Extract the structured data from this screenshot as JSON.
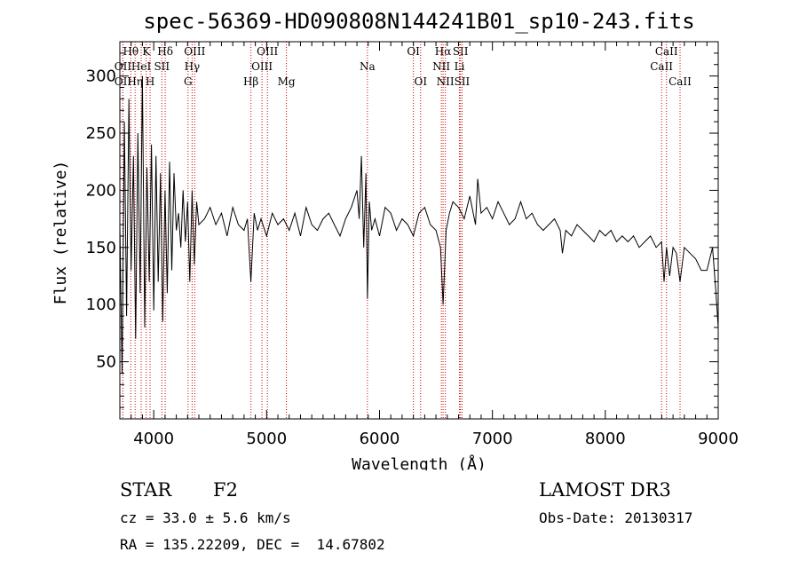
{
  "chart_data": {
    "type": "line",
    "title": "spec-56369-HD090808N144241B01_sp10-243.fits",
    "xlabel": "Wavelength (Å)",
    "ylabel": "Flux (relative)",
    "xlim": [
      3700,
      9000
    ],
    "ylim": [
      0,
      330
    ],
    "xticks": [
      4000,
      5000,
      6000,
      7000,
      8000,
      9000
    ],
    "yticks": [
      50,
      100,
      150,
      200,
      250,
      300
    ],
    "grid": false,
    "line_color": "#000000",
    "marker_color": "#cc0000",
    "series": [
      {
        "x": [
          3700,
          3720,
          3740,
          3760,
          3780,
          3800,
          3820,
          3840,
          3860,
          3880,
          3900,
          3920,
          3940,
          3960,
          3980,
          4000,
          4020,
          4040,
          4060,
          4080,
          4100,
          4120,
          4140,
          4160,
          4180,
          4200,
          4220,
          4240,
          4260,
          4280,
          4300,
          4320,
          4340,
          4360,
          4380,
          4400,
          4450,
          4500,
          4550,
          4600,
          4650,
          4700,
          4750,
          4800,
          4830,
          4861,
          4890,
          4920,
          4950,
          5000,
          5050,
          5100,
          5150,
          5200,
          5250,
          5300,
          5350,
          5400,
          5450,
          5500,
          5550,
          5600,
          5650,
          5700,
          5750,
          5800,
          5820,
          5840,
          5860,
          5880,
          5893,
          5910,
          5930,
          5960,
          6000,
          6050,
          6100,
          6150,
          6200,
          6250,
          6300,
          6350,
          6400,
          6450,
          6500,
          6540,
          6563,
          6590,
          6620,
          6650,
          6700,
          6750,
          6800,
          6850,
          6870,
          6900,
          6950,
          7000,
          7050,
          7100,
          7150,
          7200,
          7250,
          7300,
          7350,
          7400,
          7450,
          7500,
          7550,
          7600,
          7620,
          7650,
          7700,
          7750,
          7800,
          7850,
          7900,
          7950,
          8000,
          8050,
          8100,
          8150,
          8200,
          8250,
          8300,
          8350,
          8400,
          8450,
          8498,
          8520,
          8542,
          8570,
          8600,
          8630,
          8662,
          8700,
          8750,
          8800,
          8850,
          8900,
          8950,
          8980,
          9000
        ],
        "y": [
          170,
          40,
          260,
          90,
          280,
          130,
          230,
          70,
          250,
          110,
          300,
          80,
          220,
          120,
          240,
          95,
          230,
          120,
          215,
          85,
          200,
          110,
          225,
          130,
          215,
          165,
          180,
          150,
          200,
          155,
          190,
          120,
          200,
          135,
          190,
          170,
          175,
          185,
          170,
          180,
          160,
          185,
          170,
          165,
          175,
          120,
          180,
          165,
          175,
          160,
          180,
          170,
          175,
          165,
          180,
          160,
          185,
          170,
          165,
          175,
          180,
          170,
          160,
          175,
          185,
          200,
          175,
          230,
          150,
          215,
          105,
          190,
          165,
          175,
          160,
          185,
          180,
          165,
          175,
          170,
          160,
          180,
          185,
          170,
          165,
          150,
          100,
          165,
          180,
          190,
          185,
          175,
          195,
          170,
          210,
          180,
          185,
          175,
          190,
          180,
          170,
          175,
          190,
          175,
          180,
          170,
          165,
          170,
          175,
          165,
          145,
          165,
          160,
          170,
          165,
          160,
          155,
          165,
          160,
          165,
          155,
          160,
          155,
          160,
          150,
          155,
          160,
          150,
          155,
          120,
          150,
          125,
          150,
          145,
          120,
          150,
          145,
          140,
          130,
          130,
          150,
          110,
          80
        ]
      }
    ],
    "spectral_lines": [
      {
        "label": "Hθ",
        "x": 3797,
        "row": 1
      },
      {
        "label": "K",
        "x": 3934,
        "row": 1
      },
      {
        "label": "Hδ",
        "x": 4102,
        "row": 1
      },
      {
        "label": "OIII",
        "x": 4363,
        "row": 1
      },
      {
        "label": "OIII",
        "x": 5007,
        "row": 1
      },
      {
        "label": "OI",
        "x": 6300,
        "row": 1
      },
      {
        "label": "Hα",
        "x": 6563,
        "row": 1
      },
      {
        "label": "SII",
        "x": 6717,
        "row": 1
      },
      {
        "label": "CaII",
        "x": 8542,
        "row": 1
      },
      {
        "label": "OII",
        "x": 3727,
        "row": 2
      },
      {
        "label": "HeI",
        "x": 3889,
        "row": 2
      },
      {
        "label": "SII",
        "x": 4072,
        "row": 2
      },
      {
        "label": "Hγ",
        "x": 4340,
        "row": 2
      },
      {
        "label": "OIII",
        "x": 4959,
        "row": 2
      },
      {
        "label": "Na",
        "x": 5893,
        "row": 2
      },
      {
        "label": "NII",
        "x": 6548,
        "row": 2
      },
      {
        "label": "Li",
        "x": 6708,
        "row": 2
      },
      {
        "label": "CaII",
        "x": 8498,
        "row": 2
      },
      {
        "label": "OII",
        "x": 3727,
        "row": 3
      },
      {
        "label": "Hη",
        "x": 3835,
        "row": 3
      },
      {
        "label": "H",
        "x": 3968,
        "row": 3
      },
      {
        "label": "G",
        "x": 4304,
        "row": 3
      },
      {
        "label": "Hβ",
        "x": 4861,
        "row": 3
      },
      {
        "label": "Mg",
        "x": 5175,
        "row": 3
      },
      {
        "label": "OI",
        "x": 6364,
        "row": 3
      },
      {
        "label": "NII",
        "x": 6583,
        "row": 3
      },
      {
        "label": "SII",
        "x": 6731,
        "row": 3
      },
      {
        "label": "CaII",
        "x": 8662,
        "row": 3
      }
    ]
  },
  "footer": {
    "class_label": "STAR",
    "subclass_label": "F2",
    "survey": "LAMOST DR3",
    "cz": "cz = 33.0 ± 5.6 km/s",
    "obs_date": "Obs-Date: 20130317",
    "radec": "RA = 135.22209, DEC =  14.67802"
  }
}
